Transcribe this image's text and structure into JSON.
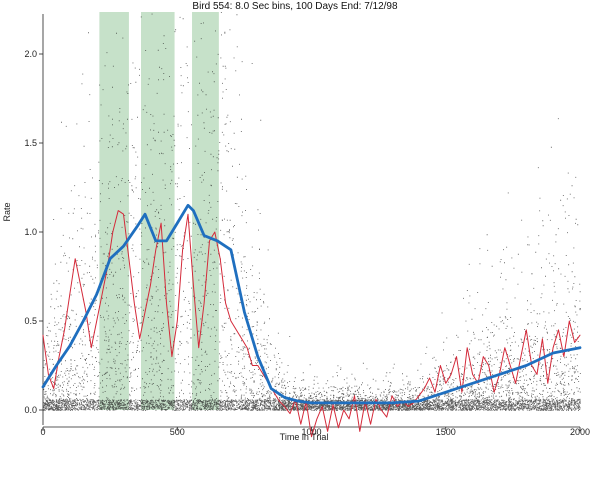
{
  "chart_data": {
    "type": "line",
    "title": "Bird 554: 8.0 Sec bins, 100 Days End: 7/12/98",
    "xlabel": "Time in Trial",
    "ylabel": "Rate",
    "xlim": [
      0,
      2000
    ],
    "ylim": [
      -0.15,
      2.25
    ],
    "x_ticks": [
      0,
      500,
      1000,
      1500,
      2000
    ],
    "y_ticks": [
      0.0,
      0.5,
      1.0,
      1.5,
      2.0
    ],
    "x_tick_labels": [
      "0",
      "500",
      "1000",
      "1500",
      "2000"
    ],
    "y_tick_labels": [
      "0.0",
      "0.5",
      "1.0",
      "1.5",
      "2.0"
    ],
    "shaded_intervals": [
      [
        210,
        320
      ],
      [
        365,
        490
      ],
      [
        555,
        655
      ]
    ],
    "shade_color": "#bcdcc0",
    "grid": false,
    "legend": "none",
    "series": [
      {
        "color": "#1f6fbf",
        "style": "thick",
        "x": [
          0,
          50,
          100,
          150,
          200,
          250,
          300,
          350,
          380,
          420,
          460,
          500,
          540,
          560,
          600,
          650,
          700,
          750,
          800,
          850,
          900,
          950,
          1000,
          1100,
          1200,
          1300,
          1400,
          1500,
          1600,
          1700,
          1800,
          1900,
          2000
        ],
        "y": [
          0.13,
          0.25,
          0.36,
          0.5,
          0.65,
          0.85,
          0.92,
          1.03,
          1.1,
          0.95,
          0.95,
          1.05,
          1.15,
          1.12,
          0.98,
          0.95,
          0.9,
          0.55,
          0.3,
          0.12,
          0.07,
          0.05,
          0.04,
          0.04,
          0.04,
          0.04,
          0.05,
          0.1,
          0.15,
          0.2,
          0.25,
          0.32,
          0.35
        ]
      },
      {
        "color": "#d42a3a",
        "style": "thin",
        "x": [
          0,
          20,
          40,
          60,
          80,
          100,
          120,
          140,
          160,
          180,
          200,
          220,
          240,
          260,
          280,
          300,
          320,
          340,
          360,
          380,
          400,
          420,
          440,
          460,
          480,
          500,
          520,
          540,
          560,
          580,
          600,
          620,
          640,
          660,
          680,
          700,
          720,
          740,
          760,
          780,
          800,
          820,
          840,
          860,
          880,
          900,
          920,
          940,
          960,
          980,
          1000,
          1020,
          1040,
          1060,
          1080,
          1100,
          1120,
          1140,
          1160,
          1180,
          1200,
          1220,
          1240,
          1260,
          1280,
          1300,
          1320,
          1340,
          1360,
          1380,
          1400,
          1420,
          1440,
          1460,
          1480,
          1500,
          1520,
          1540,
          1560,
          1580,
          1600,
          1620,
          1640,
          1660,
          1680,
          1700,
          1720,
          1740,
          1760,
          1780,
          1800,
          1820,
          1840,
          1860,
          1880,
          1900,
          1920,
          1940,
          1960,
          1980,
          2000
        ],
        "y": [
          0.42,
          0.2,
          0.12,
          0.3,
          0.45,
          0.65,
          0.85,
          0.7,
          0.55,
          0.35,
          0.5,
          0.65,
          0.8,
          1.0,
          1.12,
          1.1,
          0.85,
          0.6,
          0.4,
          0.55,
          0.7,
          0.9,
          1.05,
          0.6,
          0.3,
          0.5,
          0.9,
          1.1,
          0.7,
          0.35,
          0.6,
          0.95,
          1.0,
          0.85,
          0.6,
          0.5,
          0.45,
          0.4,
          0.35,
          0.25,
          0.25,
          0.2,
          0.15,
          0.1,
          0.05,
          0.02,
          -0.02,
          0.06,
          -0.08,
          0.05,
          -0.15,
          -0.05,
          0.02,
          -0.12,
          0.03,
          -0.1,
          0.0,
          -0.05,
          0.08,
          -0.12,
          0.05,
          -0.08,
          0.06,
          0.0,
          -0.04,
          0.08,
          0.02,
          0.05,
          0.02,
          0.04,
          0.08,
          0.12,
          0.18,
          0.1,
          0.25,
          0.15,
          0.2,
          0.3,
          0.1,
          0.35,
          0.2,
          0.15,
          0.3,
          0.25,
          0.1,
          0.2,
          0.35,
          0.25,
          0.15,
          0.3,
          0.45,
          0.25,
          0.2,
          0.4,
          0.15,
          0.35,
          0.45,
          0.3,
          0.5,
          0.38,
          0.42
        ]
      }
    ]
  }
}
